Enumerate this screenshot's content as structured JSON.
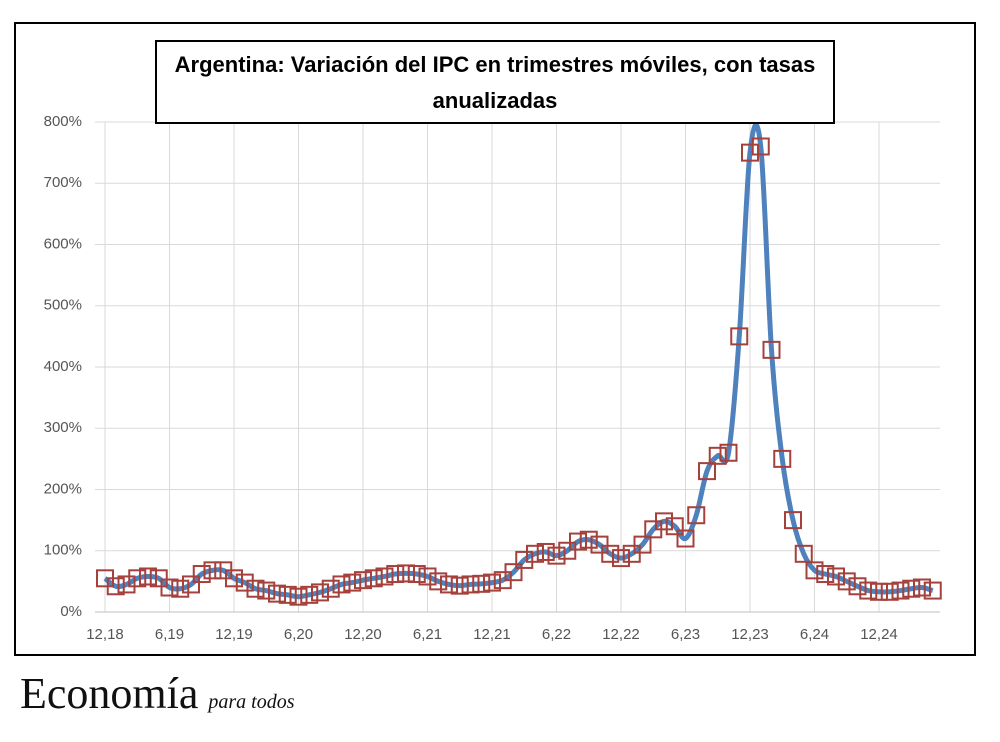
{
  "chart_data": {
    "type": "line",
    "title": "Argentina: Variación del IPC en trimestres móviles, con tasas anualizadas",
    "categories": [
      "12,18",
      null,
      null,
      null,
      null,
      null,
      "6,19",
      null,
      null,
      null,
      null,
      null,
      "12,19",
      null,
      null,
      null,
      null,
      null,
      "6,20",
      null,
      null,
      null,
      null,
      null,
      "12,20",
      null,
      null,
      null,
      null,
      null,
      "6,21",
      null,
      null,
      null,
      null,
      null,
      "12,21",
      null,
      null,
      null,
      null,
      null,
      "6,22",
      null,
      null,
      null,
      null,
      null,
      "12,22",
      null,
      null,
      null,
      null,
      null,
      "6,23",
      null,
      null,
      null,
      null,
      null,
      "12,23",
      null,
      null,
      null,
      null,
      null,
      "6,24",
      null,
      null,
      null,
      null,
      null,
      "12,24",
      null,
      null,
      null,
      null,
      null
    ],
    "series": [
      {
        "color": "#4f81bd",
        "marker_color": "#a5413d",
        "values": [
          55,
          42,
          45,
          55,
          58,
          55,
          40,
          38,
          45,
          62,
          68,
          68,
          55,
          48,
          38,
          35,
          30,
          28,
          25,
          28,
          32,
          38,
          45,
          48,
          52,
          55,
          58,
          62,
          63,
          62,
          58,
          50,
          45,
          43,
          45,
          46,
          48,
          52,
          65,
          85,
          95,
          98,
          92,
          100,
          115,
          118,
          110,
          95,
          88,
          95,
          110,
          135,
          148,
          140,
          120,
          158,
          230,
          255,
          260,
          450,
          750,
          760,
          428,
          250,
          150,
          95,
          68,
          62,
          58,
          50,
          42,
          35,
          33,
          33,
          35,
          38,
          40,
          35
        ]
      }
    ],
    "ylim": [
      0,
      800
    ],
    "yticks": [
      {
        "value": 0,
        "label": "0%"
      },
      {
        "value": 100,
        "label": "100%"
      },
      {
        "value": 200,
        "label": "200%"
      },
      {
        "value": 300,
        "label": "300%"
      },
      {
        "value": 400,
        "label": "400%"
      },
      {
        "value": 500,
        "label": "500%"
      },
      {
        "value": 600,
        "label": "600%"
      },
      {
        "value": 700,
        "label": "700%"
      },
      {
        "value": 800,
        "label": "800%"
      }
    ],
    "grid": true
  },
  "brand": {
    "name": "Economía",
    "tagline": "para todos"
  }
}
